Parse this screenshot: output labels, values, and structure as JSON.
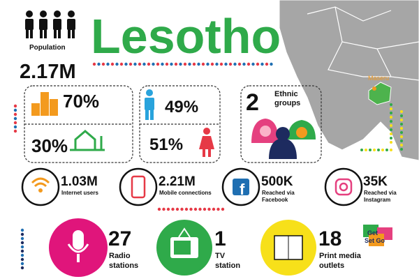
{
  "header": {
    "title": "Lesotho",
    "population_label": "Population",
    "population": "2.17M"
  },
  "map": {
    "city": "Maseru"
  },
  "demographics": {
    "urban": "70%",
    "rural": "30%",
    "male": "49%",
    "female": "51%",
    "ethnic_count": "2",
    "ethnic_label": [
      "Ethnic",
      "groups"
    ]
  },
  "digital": [
    {
      "value": "1.03M",
      "label": [
        "Internet users"
      ]
    },
    {
      "value": "2.21M",
      "label": [
        "Mobile connections"
      ]
    },
    {
      "value": "500K",
      "label": [
        "Reached via",
        "Facebook"
      ]
    },
    {
      "value": "35K",
      "label": [
        "Reached via",
        "Instagram"
      ]
    }
  ],
  "media": [
    {
      "value": "27",
      "label": [
        "Radio",
        "stations"
      ]
    },
    {
      "value": "1",
      "label": [
        "TV",
        "station"
      ]
    },
    {
      "value": "18",
      "label": [
        "Print media",
        "outlets"
      ]
    }
  ],
  "logo": {
    "line1": "Get",
    "line2": "Set Go"
  }
}
